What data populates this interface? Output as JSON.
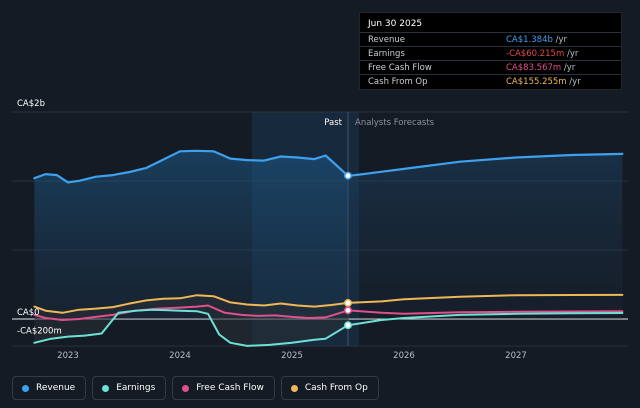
{
  "chart_data": {
    "type": "line",
    "title": "",
    "xlabel": "",
    "ylabel": "",
    "x_ticks": [
      "2023",
      "2024",
      "2025",
      "2026",
      "2027"
    ],
    "x_range": [
      2022.5,
      2028.0
    ],
    "y_tick_labels": [
      {
        "label": "CA$2b",
        "value": 2000
      },
      {
        "label": "CA$0",
        "value": 0
      },
      {
        "label": "-CA$200m",
        "value": -200
      }
    ],
    "ylim": [
      -280,
      2200
    ],
    "divider_x": 2025.5,
    "past_label": "Past",
    "forecast_label": "Analysts Forecasts",
    "series": [
      {
        "name": "Revenue",
        "color": "#3ea1ef",
        "points": [
          [
            2022.7,
            1360
          ],
          [
            2022.8,
            1400
          ],
          [
            2022.9,
            1390
          ],
          [
            2023.0,
            1320
          ],
          [
            2023.1,
            1335
          ],
          [
            2023.25,
            1375
          ],
          [
            2023.4,
            1390
          ],
          [
            2023.55,
            1420
          ],
          [
            2023.7,
            1460
          ],
          [
            2023.85,
            1540
          ],
          [
            2024.0,
            1620
          ],
          [
            2024.15,
            1625
          ],
          [
            2024.3,
            1620
          ],
          [
            2024.45,
            1550
          ],
          [
            2024.6,
            1535
          ],
          [
            2024.75,
            1530
          ],
          [
            2024.9,
            1570
          ],
          [
            2025.05,
            1560
          ],
          [
            2025.2,
            1545
          ],
          [
            2025.3,
            1580
          ],
          [
            2025.5,
            1384
          ],
          [
            2025.6,
            1395
          ],
          [
            2026.0,
            1450
          ],
          [
            2026.5,
            1520
          ],
          [
            2027.0,
            1560
          ],
          [
            2027.5,
            1585
          ],
          [
            2027.95,
            1595
          ]
        ]
      },
      {
        "name": "Earnings",
        "color": "#6ee1d6",
        "points": [
          [
            2022.7,
            -230
          ],
          [
            2022.85,
            -190
          ],
          [
            2023.0,
            -170
          ],
          [
            2023.15,
            -160
          ],
          [
            2023.3,
            -140
          ],
          [
            2023.45,
            60
          ],
          [
            2023.6,
            80
          ],
          [
            2023.75,
            90
          ],
          [
            2023.9,
            85
          ],
          [
            2024.0,
            80
          ],
          [
            2024.15,
            75
          ],
          [
            2024.25,
            50
          ],
          [
            2024.35,
            -150
          ],
          [
            2024.45,
            -230
          ],
          [
            2024.6,
            -260
          ],
          [
            2024.8,
            -250
          ],
          [
            2025.0,
            -230
          ],
          [
            2025.2,
            -200
          ],
          [
            2025.3,
            -190
          ],
          [
            2025.5,
            -60.215
          ],
          [
            2025.8,
            -10
          ],
          [
            2026.0,
            10
          ],
          [
            2026.5,
            40
          ],
          [
            2027.0,
            50
          ],
          [
            2027.5,
            55
          ],
          [
            2027.95,
            58
          ]
        ]
      },
      {
        "name": "Free Cash Flow",
        "color": "#e0508a",
        "points": [
          [
            2022.7,
            40
          ],
          [
            2022.8,
            10
          ],
          [
            2022.95,
            -10
          ],
          [
            2023.1,
            0
          ],
          [
            2023.25,
            20
          ],
          [
            2023.4,
            40
          ],
          [
            2023.6,
            80
          ],
          [
            2023.8,
            100
          ],
          [
            2024.0,
            110
          ],
          [
            2024.15,
            120
          ],
          [
            2024.25,
            130
          ],
          [
            2024.4,
            60
          ],
          [
            2024.55,
            40
          ],
          [
            2024.7,
            30
          ],
          [
            2024.85,
            35
          ],
          [
            2025.0,
            20
          ],
          [
            2025.15,
            10
          ],
          [
            2025.3,
            15
          ],
          [
            2025.5,
            83.567
          ],
          [
            2025.8,
            60
          ],
          [
            2026.0,
            50
          ],
          [
            2026.5,
            65
          ],
          [
            2027.0,
            70
          ],
          [
            2027.5,
            72
          ],
          [
            2027.95,
            74
          ]
        ]
      },
      {
        "name": "Cash From Op",
        "color": "#efb756",
        "points": [
          [
            2022.7,
            120
          ],
          [
            2022.8,
            80
          ],
          [
            2022.95,
            60
          ],
          [
            2023.1,
            90
          ],
          [
            2023.25,
            100
          ],
          [
            2023.4,
            115
          ],
          [
            2023.55,
            150
          ],
          [
            2023.7,
            180
          ],
          [
            2023.85,
            195
          ],
          [
            2024.0,
            200
          ],
          [
            2024.15,
            230
          ],
          [
            2024.3,
            220
          ],
          [
            2024.45,
            160
          ],
          [
            2024.6,
            140
          ],
          [
            2024.75,
            130
          ],
          [
            2024.9,
            150
          ],
          [
            2025.05,
            130
          ],
          [
            2025.2,
            120
          ],
          [
            2025.35,
            135
          ],
          [
            2025.5,
            155.255
          ],
          [
            2025.8,
            170
          ],
          [
            2026.0,
            190
          ],
          [
            2026.5,
            215
          ],
          [
            2027.0,
            230
          ],
          [
            2027.5,
            232
          ],
          [
            2027.95,
            233
          ]
        ]
      }
    ]
  },
  "tooltip": {
    "date": "Jun 30 2025",
    "rows": [
      {
        "label": "Revenue",
        "value": "CA$1.384b",
        "unit": "/yr",
        "color": "#3ea1ef"
      },
      {
        "label": "Earnings",
        "value": "-CA$60.215m",
        "unit": "/yr",
        "color": "#e5484d"
      },
      {
        "label": "Free Cash Flow",
        "value": "CA$83.567m",
        "unit": "/yr",
        "color": "#e0508a"
      },
      {
        "label": "Cash From Op",
        "value": "CA$155.255m",
        "unit": "/yr",
        "color": "#efb756"
      }
    ]
  },
  "legend": [
    {
      "label": "Revenue",
      "color": "#3ea1ef"
    },
    {
      "label": "Earnings",
      "color": "#6ee1d6"
    },
    {
      "label": "Free Cash Flow",
      "color": "#e0508a"
    },
    {
      "label": "Cash From Op",
      "color": "#efb756"
    }
  ]
}
